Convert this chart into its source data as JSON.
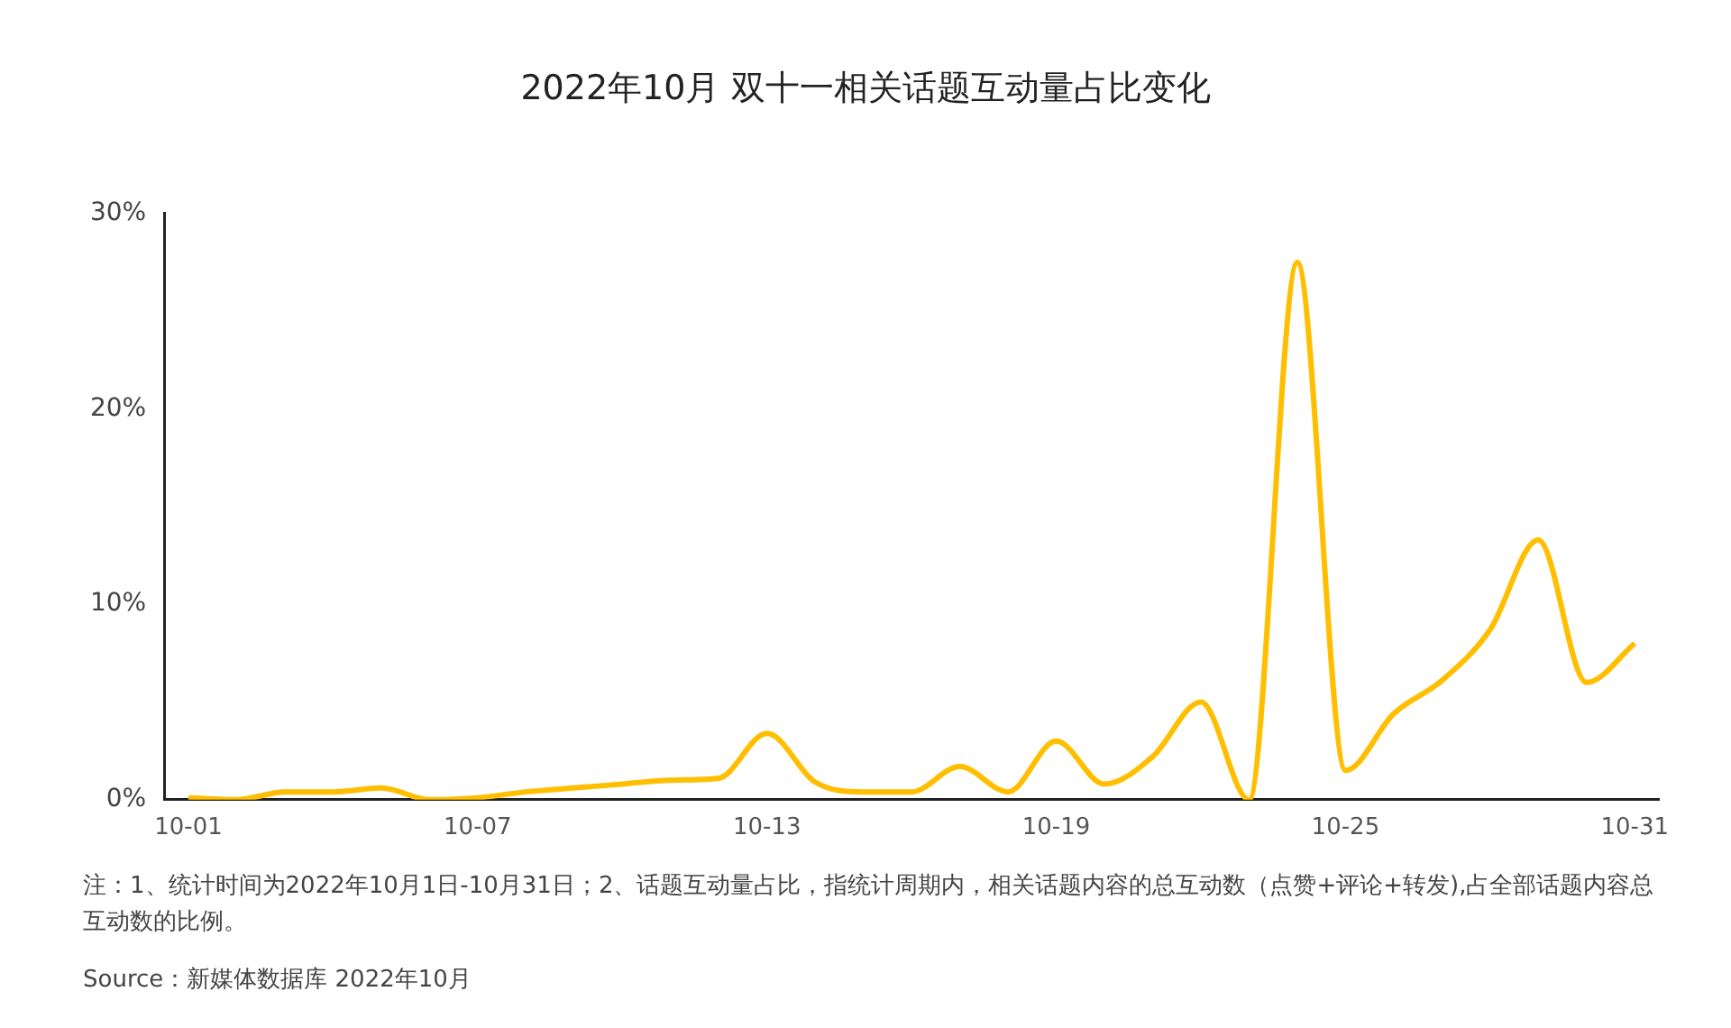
{
  "chart_data": {
    "type": "line",
    "title": "2022年10月 双十一相关话题互动量占比变化",
    "categories": [
      "10-01",
      null,
      null,
      null,
      null,
      null,
      "10-07",
      null,
      null,
      null,
      null,
      null,
      "10-13",
      null,
      null,
      null,
      null,
      null,
      "10-19",
      null,
      null,
      null,
      null,
      null,
      "10-25",
      null,
      null,
      null,
      null,
      null,
      "10-31"
    ],
    "values": [
      0.1,
      0.0,
      0.4,
      0.4,
      0.6,
      0.0,
      0.1,
      0.4,
      0.6,
      0.8,
      1.0,
      1.1,
      3.4,
      0.9,
      0.4,
      0.4,
      1.7,
      0.4,
      3.0,
      0.8,
      2.2,
      5.0,
      0.0,
      27.5,
      1.5,
      4.4,
      6.1,
      8.7,
      13.3,
      6.0,
      8.0
    ],
    "color": "#ffbf00",
    "ylim": [
      0,
      30
    ],
    "yticks": [
      {
        "value": 0,
        "label": "0%"
      },
      {
        "value": 10,
        "label": "10%"
      },
      {
        "value": 20,
        "label": "20%"
      },
      {
        "value": 30,
        "label": "30%"
      }
    ],
    "grid": false,
    "legend": false,
    "marker": "none",
    "line_style": "solid",
    "annotations": [
      "注：1、统计时间为2022年10月1日-10月31日；2、话题互动量占比，指统计周期内，相关话题内容的总互动数（点赞+评论+转发),占全部话题内容总互动数的比例。",
      "Source：新媒体数据库 2022年10月"
    ]
  }
}
